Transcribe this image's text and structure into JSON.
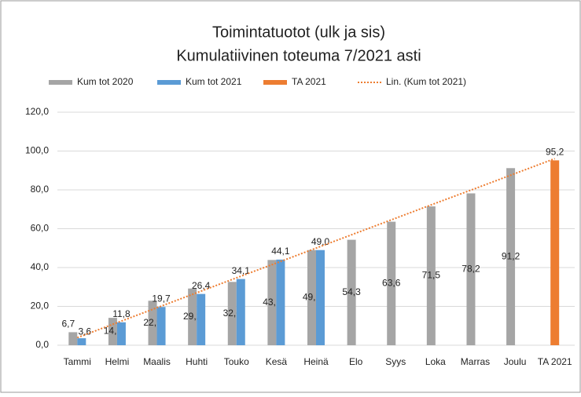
{
  "chart_data": {
    "type": "bar",
    "title": "Toimintatuotot (ulk ja sis)",
    "subtitle": "Kumulatiivinen toteuma 7/2021 asti",
    "categories": [
      "Tammi",
      "Helmi",
      "Maalis",
      "Huhti",
      "Touko",
      "Kesä",
      "Heinä",
      "Elo",
      "Syys",
      "Loka",
      "Marras",
      "Joulu",
      "TA 2021"
    ],
    "series": [
      {
        "name": "Kum tot 2020",
        "color": "#a5a5a5",
        "values": [
          6.7,
          14.1,
          22.9,
          29.2,
          32.6,
          43.9,
          49.0,
          54.3,
          63.6,
          71.5,
          78.2,
          91.2,
          null
        ],
        "value_labels": [
          "6,7",
          "14,1",
          "22,9",
          "29,2",
          "32,6",
          "43,9",
          "49,0",
          "54,3",
          "63,6",
          "71,5",
          "78,2",
          "91,2",
          null
        ]
      },
      {
        "name": "Kum tot 2021",
        "color": "#5b9bd5",
        "values": [
          3.6,
          11.8,
          19.7,
          26.4,
          34.1,
          44.1,
          49.0,
          null,
          null,
          null,
          null,
          null,
          null
        ],
        "value_labels": [
          "3,6",
          "11,8",
          "19,7",
          "26,4",
          "34,1",
          "44,1",
          "49,0",
          null,
          null,
          null,
          null,
          null,
          null
        ]
      },
      {
        "name": "TA 2021",
        "color": "#ed7d31",
        "values": [
          null,
          null,
          null,
          null,
          null,
          null,
          null,
          null,
          null,
          null,
          null,
          null,
          95.2
        ],
        "value_labels": [
          null,
          null,
          null,
          null,
          null,
          null,
          null,
          null,
          null,
          null,
          null,
          null,
          "95,2"
        ]
      },
      {
        "name": "Lin. (Kum tot 2021)",
        "color": "#ed7d31",
        "type": "trendline",
        "values": [
          3.9,
          11.6,
          19.3,
          27.0,
          34.7,
          42.3,
          50.0,
          57.7,
          65.4,
          73.1,
          80.7,
          88.4,
          96.1
        ]
      }
    ],
    "ylim": [
      0,
      120
    ],
    "yticks": [
      {
        "value": 0,
        "label": "0,0"
      },
      {
        "value": 20,
        "label": "20,0"
      },
      {
        "value": 40,
        "label": "40,0"
      },
      {
        "value": 60,
        "label": "60,0"
      },
      {
        "value": 80,
        "label": "80,0"
      },
      {
        "value": 100,
        "label": "100,0"
      },
      {
        "value": 120,
        "label": "120,0"
      }
    ],
    "grid": true,
    "legend": "top"
  }
}
